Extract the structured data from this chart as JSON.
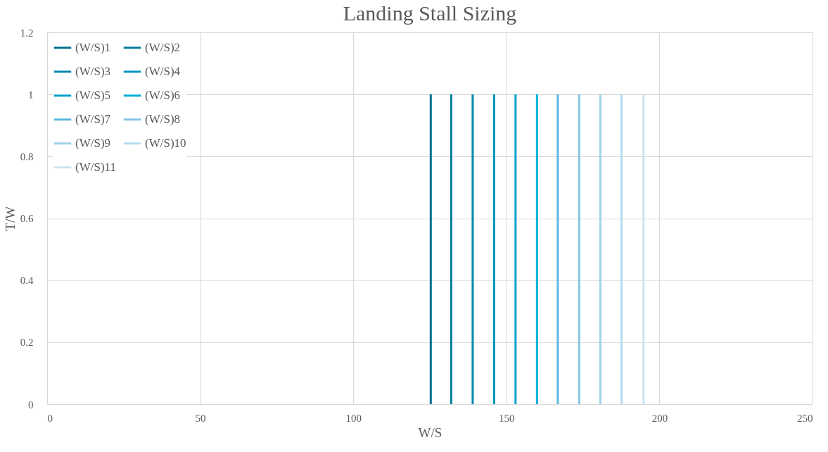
{
  "chart_data": {
    "type": "line",
    "title": "Landing Stall Sizing",
    "xlabel": "W/S",
    "ylabel": "T/W",
    "xlim": [
      0,
      250
    ],
    "xticks": [
      0,
      50,
      100,
      150,
      200,
      250
    ],
    "ylim": [
      0,
      1.2
    ],
    "yticks": [
      0,
      0.2,
      0.4,
      0.6,
      0.8,
      1,
      1.2
    ],
    "grid": true,
    "legend": "top left",
    "marker": "none",
    "line_style": "solid",
    "series": [
      {
        "name": "(W/S)1",
        "color": "#00708f",
        "x": [
          125.3,
          125.3
        ],
        "values": [
          0,
          1
        ]
      },
      {
        "name": "(W/S)2",
        "color": "#007fa0",
        "x": [
          132,
          132
        ],
        "values": [
          0,
          1
        ]
      },
      {
        "name": "(W/S)3",
        "color": "#0089b0",
        "x": [
          139,
          139
        ],
        "values": [
          0,
          1
        ]
      },
      {
        "name": "(W/S)4",
        "color": "#0095bf",
        "x": [
          146,
          146
        ],
        "values": [
          0,
          1
        ]
      },
      {
        "name": "(W/S)5",
        "color": "#00a2cf",
        "x": [
          153,
          153
        ],
        "values": [
          0,
          1
        ]
      },
      {
        "name": "(W/S)6",
        "color": "#00b0db",
        "x": [
          160,
          160
        ],
        "values": [
          0,
          1
        ]
      },
      {
        "name": "(W/S)7",
        "color": "#5bb8e0",
        "x": [
          166.8,
          166.8
        ],
        "values": [
          0,
          1
        ]
      },
      {
        "name": "(W/S)8",
        "color": "#85c6e6",
        "x": [
          173.8,
          173.8
        ],
        "values": [
          0,
          1
        ]
      },
      {
        "name": "(W/S)9",
        "color": "#a1d0ea",
        "x": [
          180.7,
          180.7
        ],
        "values": [
          0,
          1
        ]
      },
      {
        "name": "(W/S)10",
        "color": "#b5dbef",
        "x": [
          187.6,
          187.6
        ],
        "values": [
          0,
          1
        ]
      },
      {
        "name": "(W/S)11",
        "color": "#cce4f2",
        "x": [
          194.8,
          194.8
        ],
        "values": [
          0,
          1
        ]
      }
    ]
  }
}
